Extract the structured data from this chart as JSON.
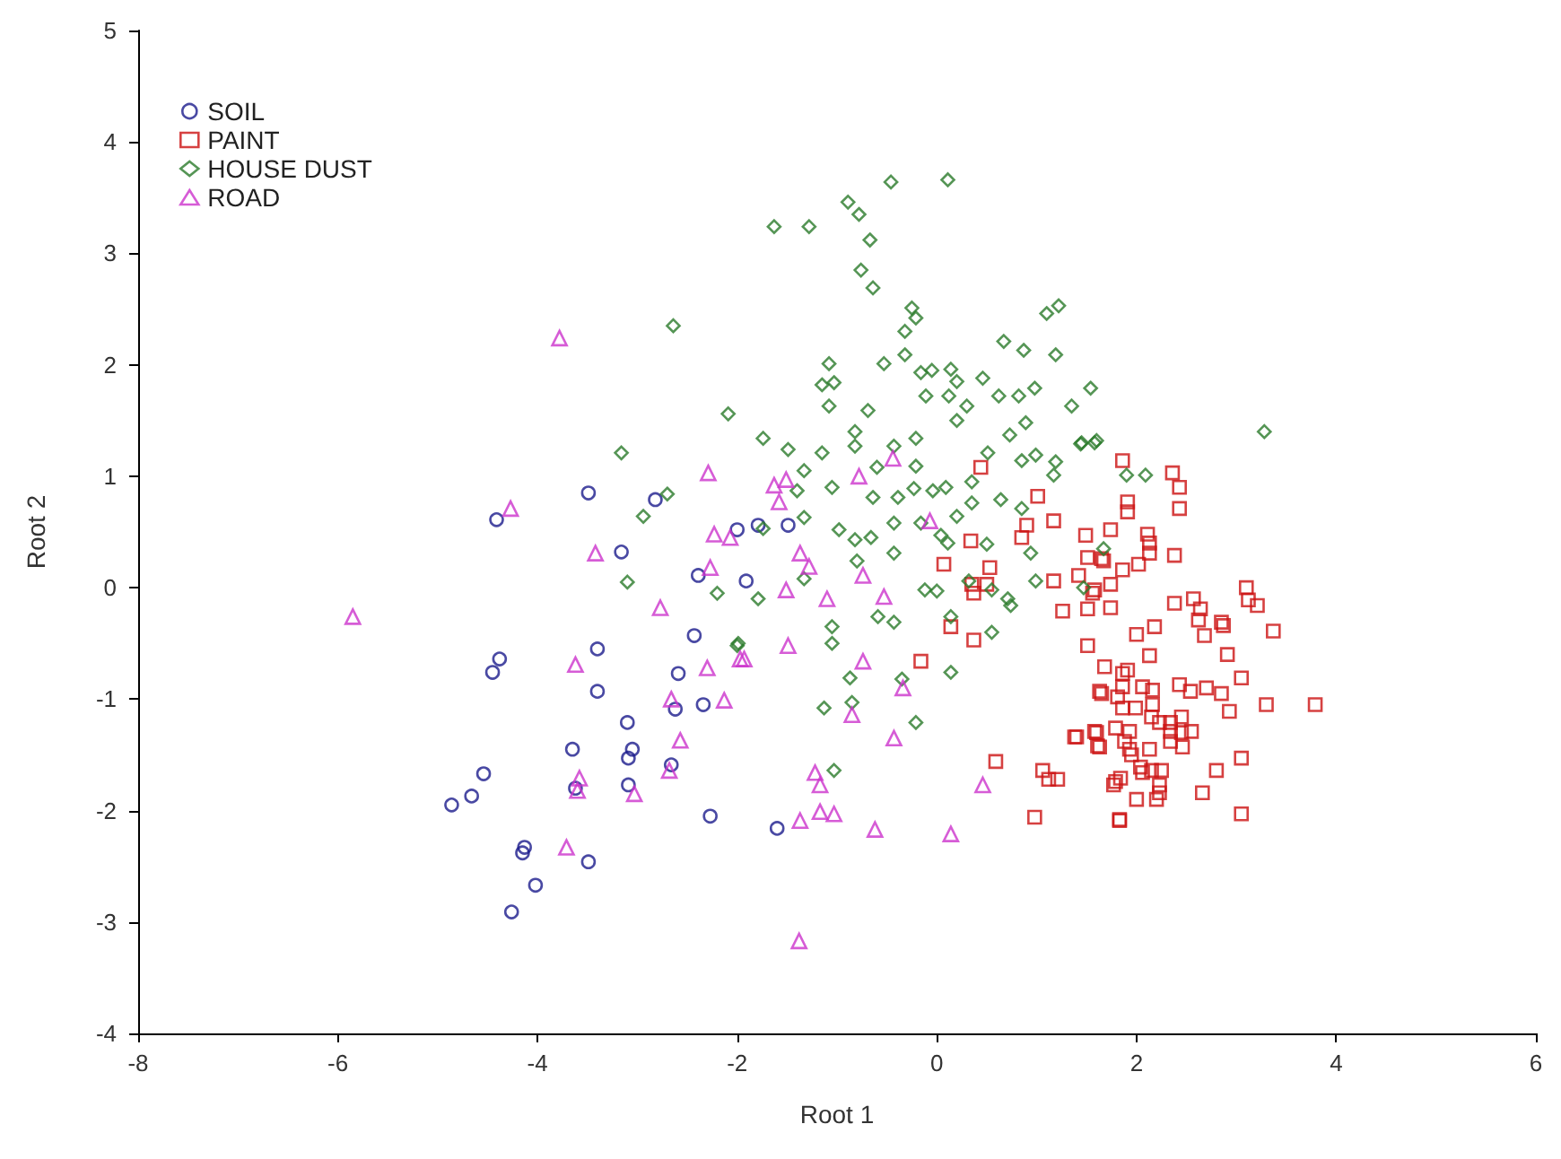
{
  "chart_data": {
    "type": "scatter",
    "xlabel": "Root 1",
    "ylabel": "Root 2",
    "xlim": [
      -8,
      6
    ],
    "xticks": [
      -8,
      -6,
      -4,
      -2,
      0,
      2,
      4,
      6
    ],
    "ylim": [
      -4,
      5
    ],
    "yticks": [
      -4,
      -3,
      -2,
      -1,
      0,
      1,
      2,
      3,
      4,
      5
    ],
    "grid": false,
    "legend": "top left",
    "series": [
      {
        "name": "SOIL",
        "color": "#1c1c8c",
        "marker": "circle",
        "x": [
          -3.49,
          -4.41,
          -2.82,
          -3.16,
          -2.39,
          -2.0,
          -1.91,
          -4.38,
          -4.45,
          -3.4,
          -2.43,
          -3.4,
          -2.59,
          -2.62,
          -2.34,
          -3.1,
          -3.65,
          -3.05,
          -3.09,
          -4.54,
          -4.66,
          -4.86,
          -2.66,
          -3.62,
          -3.09,
          -2.27,
          -4.13,
          -4.15,
          -3.49,
          -4.02,
          -4.26,
          -1.6,
          -1.49,
          -1.79
        ],
        "values": [
          0.85,
          0.61,
          0.79,
          0.32,
          0.11,
          0.52,
          0.06,
          -0.64,
          -0.76,
          -0.55,
          -0.43,
          -0.93,
          -0.77,
          -1.09,
          -1.05,
          -1.21,
          -1.45,
          -1.45,
          -1.53,
          -1.67,
          -1.87,
          -1.95,
          -1.59,
          -1.8,
          -1.77,
          -2.05,
          -2.33,
          -2.38,
          -2.46,
          -2.67,
          -2.91,
          -2.16,
          0.56,
          0.56
        ]
      },
      {
        "name": "PAINT",
        "color": "#cc1111",
        "marker": "square",
        "x": [
          0.44,
          1.01,
          0.9,
          1.17,
          0.85,
          0.34,
          1.49,
          1.74,
          1.86,
          1.91,
          1.91,
          1.51,
          1.65,
          1.86,
          0.07,
          0.53,
          0.35,
          1.17,
          1.42,
          1.58,
          0.37,
          0.5,
          0.14,
          0.37,
          1.26,
          1.51,
          1.74,
          1.56,
          1.74,
          -0.16,
          1.51,
          1.68,
          1.63,
          1.4,
          1.6,
          1.63,
          0.59,
          1.06,
          1.12,
          1.21,
          0.98,
          1.83,
          1.79,
          2.36,
          2.43,
          2.43,
          2.11,
          2.13,
          2.13,
          2.38,
          2.02,
          1.67,
          2.38,
          2.57,
          2.64,
          2.62,
          2.85,
          2.87,
          3.1,
          3.12,
          3.21,
          3.37,
          2.68,
          2.18,
          2.0,
          2.13,
          2.91,
          1.91,
          1.86,
          3.05,
          1.86,
          2.06,
          2.43,
          2.54,
          2.7,
          2.85,
          2.93,
          2.16,
          1.65,
          1.81,
          2.16,
          3.3,
          3.79,
          1.86,
          1.99,
          2.15,
          2.23,
          2.34,
          2.45,
          2.55,
          2.34,
          2.45,
          1.79,
          1.93,
          1.58,
          1.38,
          1.61,
          1.88,
          1.93,
          2.13,
          2.34,
          2.46,
          1.95,
          2.04,
          2.15,
          2.25,
          2.06,
          3.05,
          2.8,
          1.84,
          1.77,
          2.23,
          2.23,
          2.2,
          2.0,
          2.66,
          1.83,
          3.05
        ],
        "values": [
          1.08,
          0.82,
          0.56,
          0.6,
          0.45,
          0.42,
          0.47,
          0.52,
          1.14,
          0.77,
          0.68,
          0.27,
          0.26,
          0.16,
          0.21,
          0.18,
          0.03,
          0.06,
          0.11,
          -0.02,
          -0.05,
          0.03,
          -0.35,
          -0.47,
          -0.21,
          -0.19,
          -0.18,
          -0.05,
          0.03,
          -0.66,
          -0.52,
          -0.71,
          -0.93,
          -1.34,
          -1.3,
          -1.43,
          -1.56,
          -1.64,
          -1.72,
          -1.72,
          -2.06,
          -2.08,
          -1.74,
          1.03,
          0.9,
          0.71,
          0.48,
          0.4,
          0.31,
          0.29,
          0.21,
          0.24,
          -0.14,
          -0.1,
          -0.19,
          -0.29,
          -0.31,
          -0.34,
          0.0,
          -0.11,
          -0.16,
          -0.39,
          -0.43,
          -0.35,
          -0.42,
          -0.61,
          -0.6,
          -0.74,
          -0.77,
          -0.81,
          -0.89,
          -0.89,
          -0.87,
          -0.93,
          -0.9,
          -0.95,
          -1.11,
          -0.92,
          -0.95,
          -0.98,
          -1.05,
          -1.05,
          -1.05,
          -1.08,
          -1.08,
          -1.16,
          -1.21,
          -1.21,
          -1.16,
          -1.29,
          -1.29,
          -1.3,
          -1.26,
          -1.29,
          -1.29,
          -1.34,
          -1.42,
          -1.38,
          -1.45,
          -1.45,
          -1.38,
          -1.43,
          -1.5,
          -1.61,
          -1.64,
          -1.64,
          -1.66,
          -1.53,
          -1.64,
          -1.71,
          -1.77,
          -1.77,
          -1.84,
          -1.9,
          -1.9,
          -1.84,
          -2.09,
          -2.03
        ]
      },
      {
        "name": "HOUSE DUST",
        "color": "#2a7a2a",
        "marker": "diamond",
        "x": [
          -0.46,
          0.11,
          -0.89,
          -0.78,
          -1.63,
          -1.28,
          -0.67,
          -0.76,
          -0.64,
          -0.25,
          -0.21,
          -0.32,
          1.1,
          1.22,
          0.67,
          0.87,
          1.19,
          -0.32,
          -1.08,
          -0.53,
          -0.16,
          -0.05,
          0.14,
          0.2,
          0.46,
          -1.15,
          -1.03,
          -0.11,
          0.12,
          0.3,
          0.62,
          0.82,
          0.98,
          1.54,
          1.35,
          -1.08,
          -0.69,
          -2.09,
          0.2,
          0.73,
          0.89,
          1.45,
          1.6,
          -0.82,
          -1.74,
          -1.49,
          -1.15,
          -0.82,
          -0.21,
          -0.43,
          0.51,
          0.85,
          0.99,
          1.19,
          1.17,
          -0.6,
          -0.21,
          -1.33,
          0.35,
          0.09,
          -0.04,
          -0.23,
          -1.05,
          -1.4,
          -0.64,
          -0.39,
          0.64,
          0.35,
          0.85,
          -1.33,
          -0.98,
          -0.82,
          -0.66,
          -0.43,
          -0.16,
          0.04,
          0.11,
          0.2,
          0.5,
          0.94,
          -0.43,
          -0.8,
          -1.74,
          -2.2,
          -1.79,
          -0.12,
          0.32,
          0.55,
          0.71,
          0.99,
          -2.64,
          -3.16,
          -2.7,
          -2.94,
          -3.1,
          -1.99,
          -1.33,
          0.0,
          0.74,
          -0.59,
          -0.43,
          -1.05,
          -1.05,
          -2.0,
          0.14,
          0.55,
          -0.87,
          -0.35,
          0.14,
          -1.13,
          -0.85,
          -0.21,
          -1.03,
          1.44,
          1.58,
          3.28,
          1.9,
          2.09,
          1.67,
          1.47
        ],
        "values": [
          3.64,
          3.66,
          3.46,
          3.35,
          3.24,
          3.24,
          3.12,
          2.85,
          2.69,
          2.51,
          2.42,
          2.3,
          2.46,
          2.53,
          2.21,
          2.13,
          2.09,
          2.09,
          2.01,
          2.01,
          1.93,
          1.95,
          1.96,
          1.85,
          1.88,
          1.82,
          1.84,
          1.72,
          1.72,
          1.63,
          1.72,
          1.72,
          1.79,
          1.79,
          1.63,
          1.63,
          1.59,
          1.56,
          1.5,
          1.37,
          1.48,
          1.3,
          1.32,
          1.4,
          1.34,
          1.24,
          1.21,
          1.27,
          1.34,
          1.27,
          1.21,
          1.14,
          1.19,
          1.13,
          1.01,
          1.08,
          1.09,
          1.05,
          0.95,
          0.9,
          0.87,
          0.89,
          0.9,
          0.87,
          0.81,
          0.81,
          0.79,
          0.76,
          0.71,
          0.63,
          0.52,
          0.43,
          0.45,
          0.58,
          0.58,
          0.47,
          0.4,
          0.64,
          0.39,
          0.31,
          0.31,
          0.24,
          0.53,
          -0.05,
          -0.1,
          -0.02,
          0.06,
          -0.02,
          -0.1,
          0.06,
          2.35,
          1.21,
          0.84,
          0.64,
          0.05,
          -0.5,
          0.08,
          -0.03,
          -0.16,
          -0.26,
          -0.31,
          -0.35,
          -0.5,
          -0.52,
          -0.26,
          -0.4,
          -0.81,
          -0.82,
          -0.76,
          -1.08,
          -1.03,
          -1.21,
          -1.64,
          1.29,
          1.3,
          1.4,
          1.01,
          1.01,
          0.35,
          0.0
        ]
      },
      {
        "name": "ROAD",
        "color": "#cc33cc",
        "marker": "triangle",
        "x": [
          -5.85,
          -3.78,
          -4.27,
          -2.29,
          -2.23,
          -2.07,
          -3.42,
          -2.27,
          -2.77,
          -3.62,
          -2.3,
          -2.13,
          -2.66,
          -2.57,
          -2.68,
          -3.58,
          -3.6,
          -3.03,
          -3.71,
          -1.97,
          -1.63,
          -1.51,
          -1.58,
          -0.78,
          -0.44,
          -1.37,
          -1.28,
          -0.74,
          -1.51,
          -1.1,
          -0.53,
          -0.07,
          -1.49,
          -1.93,
          -0.74,
          -0.34,
          -0.85,
          -0.43,
          0.46,
          -1.22,
          -1.17,
          -1.37,
          -1.17,
          -1.03,
          -0.62,
          0.14,
          -1.38
        ],
        "values": [
          -0.26,
          2.24,
          0.71,
          1.03,
          0.48,
          0.45,
          0.31,
          0.18,
          -0.18,
          -0.69,
          -0.72,
          -1.01,
          -1.0,
          -1.37,
          -1.64,
          -1.71,
          -1.82,
          -1.85,
          -2.33,
          -0.64,
          0.92,
          0.97,
          0.77,
          1.0,
          1.16,
          0.31,
          0.19,
          0.11,
          -0.02,
          -0.1,
          -0.08,
          0.6,
          -0.52,
          -0.64,
          -0.66,
          -0.9,
          -1.14,
          -1.35,
          -1.77,
          -1.66,
          -1.77,
          -2.09,
          -2.01,
          -2.03,
          -2.17,
          -2.21,
          -3.17
        ]
      }
    ]
  }
}
